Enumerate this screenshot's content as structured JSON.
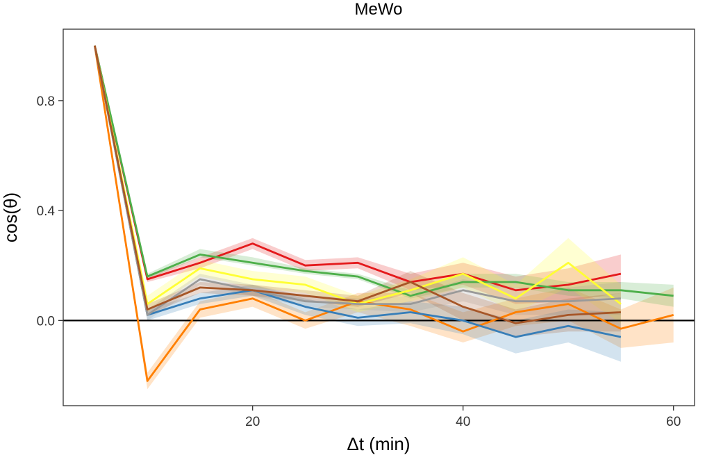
{
  "chart_data": {
    "type": "line",
    "title": "MeWo",
    "xlabel": "Δt (min)",
    "ylabel": "cos(θ)",
    "xlim": [
      2.0,
      62.0
    ],
    "ylim": [
      -0.31,
      1.06
    ],
    "xticks": [
      20,
      40,
      60
    ],
    "yticks": [
      0.0,
      0.4,
      0.8
    ],
    "ytick_labels": [
      "0.0",
      "0.4",
      "0.8"
    ],
    "grid": false,
    "reference_line_y": 0.0,
    "series": [
      {
        "color": "#ff7f00",
        "x": [
          5,
          10,
          15,
          20,
          25,
          30,
          35,
          40,
          45,
          50,
          55,
          60
        ],
        "y": [
          1.0,
          -0.22,
          0.04,
          0.08,
          0.0,
          0.07,
          0.04,
          -0.04,
          0.03,
          0.06,
          -0.03,
          0.02
        ],
        "lower": [
          1.0,
          -0.25,
          0.01,
          0.05,
          -0.03,
          0.03,
          -0.02,
          -0.08,
          -0.02,
          0.0,
          -0.1,
          -0.08
        ],
        "upper": [
          1.0,
          -0.19,
          0.07,
          0.11,
          0.03,
          0.1,
          0.1,
          0.03,
          0.08,
          0.12,
          0.04,
          0.12
        ]
      },
      {
        "color": "#377eb8",
        "x": [
          5,
          10,
          15,
          20,
          25,
          30,
          35,
          40,
          45,
          50,
          55
        ],
        "y": [
          1.0,
          0.02,
          0.08,
          0.11,
          0.05,
          0.01,
          0.03,
          0.0,
          -0.06,
          -0.02,
          -0.06
        ],
        "lower": [
          1.0,
          0.0,
          0.06,
          0.09,
          0.02,
          -0.02,
          -0.01,
          -0.05,
          -0.12,
          -0.08,
          -0.15
        ],
        "upper": [
          1.0,
          0.04,
          0.1,
          0.13,
          0.08,
          0.04,
          0.07,
          0.05,
          0.0,
          0.04,
          0.03
        ]
      },
      {
        "color": "#e41a1c",
        "x": [
          5,
          10,
          15,
          20,
          25,
          30,
          35,
          40,
          45,
          50,
          55
        ],
        "y": [
          1.0,
          0.15,
          0.21,
          0.28,
          0.2,
          0.21,
          0.14,
          0.17,
          0.11,
          0.13,
          0.17
        ],
        "lower": [
          1.0,
          0.14,
          0.19,
          0.26,
          0.18,
          0.19,
          0.11,
          0.13,
          0.06,
          0.07,
          0.1
        ],
        "upper": [
          1.0,
          0.16,
          0.23,
          0.3,
          0.22,
          0.23,
          0.17,
          0.21,
          0.16,
          0.19,
          0.24
        ]
      },
      {
        "color": "#4daf4a",
        "x": [
          5,
          10,
          15,
          20,
          25,
          30,
          35,
          40,
          45,
          50,
          55,
          60
        ],
        "y": [
          1.0,
          0.16,
          0.24,
          0.21,
          0.18,
          0.16,
          0.09,
          0.14,
          0.14,
          0.11,
          0.11,
          0.09
        ],
        "lower": [
          1.0,
          0.15,
          0.23,
          0.2,
          0.17,
          0.15,
          0.08,
          0.12,
          0.12,
          0.09,
          0.08,
          0.05
        ],
        "upper": [
          1.0,
          0.17,
          0.26,
          0.23,
          0.19,
          0.17,
          0.11,
          0.17,
          0.17,
          0.14,
          0.14,
          0.13
        ]
      },
      {
        "color": "#ffff33",
        "x": [
          5,
          10,
          15,
          20,
          25,
          30,
          35,
          40,
          45,
          50,
          55
        ],
        "y": [
          1.0,
          0.06,
          0.19,
          0.15,
          0.13,
          0.06,
          0.11,
          0.17,
          0.08,
          0.21,
          0.06
        ],
        "lower": [
          1.0,
          0.03,
          0.16,
          0.12,
          0.1,
          0.03,
          0.07,
          0.12,
          0.03,
          0.12,
          -0.01
        ],
        "upper": [
          1.0,
          0.09,
          0.22,
          0.18,
          0.16,
          0.09,
          0.15,
          0.23,
          0.13,
          0.3,
          0.13
        ]
      },
      {
        "color": "#999999",
        "x": [
          5,
          10,
          15,
          20,
          25,
          30,
          35,
          40,
          45,
          50,
          55
        ],
        "y": [
          1.0,
          0.02,
          0.15,
          0.11,
          0.07,
          0.06,
          0.06,
          0.11,
          0.07,
          0.07,
          0.08
        ],
        "lower": [
          1.0,
          0.0,
          0.13,
          0.09,
          0.05,
          0.04,
          0.03,
          0.07,
          0.02,
          0.02,
          0.02
        ],
        "upper": [
          1.0,
          0.04,
          0.17,
          0.13,
          0.09,
          0.08,
          0.09,
          0.15,
          0.12,
          0.12,
          0.14
        ]
      },
      {
        "color": "#a65628",
        "x": [
          5,
          10,
          15,
          20,
          25,
          30,
          35,
          40,
          45,
          50,
          55
        ],
        "y": [
          1.0,
          0.04,
          0.12,
          0.11,
          0.09,
          0.07,
          0.14,
          0.05,
          -0.01,
          0.02,
          0.03
        ],
        "lower": [
          1.0,
          0.02,
          0.1,
          0.09,
          0.07,
          0.05,
          0.1,
          0.0,
          -0.06,
          -0.04,
          -0.04
        ],
        "upper": [
          1.0,
          0.06,
          0.14,
          0.13,
          0.11,
          0.09,
          0.18,
          0.1,
          0.04,
          0.08,
          0.1
        ]
      }
    ]
  }
}
